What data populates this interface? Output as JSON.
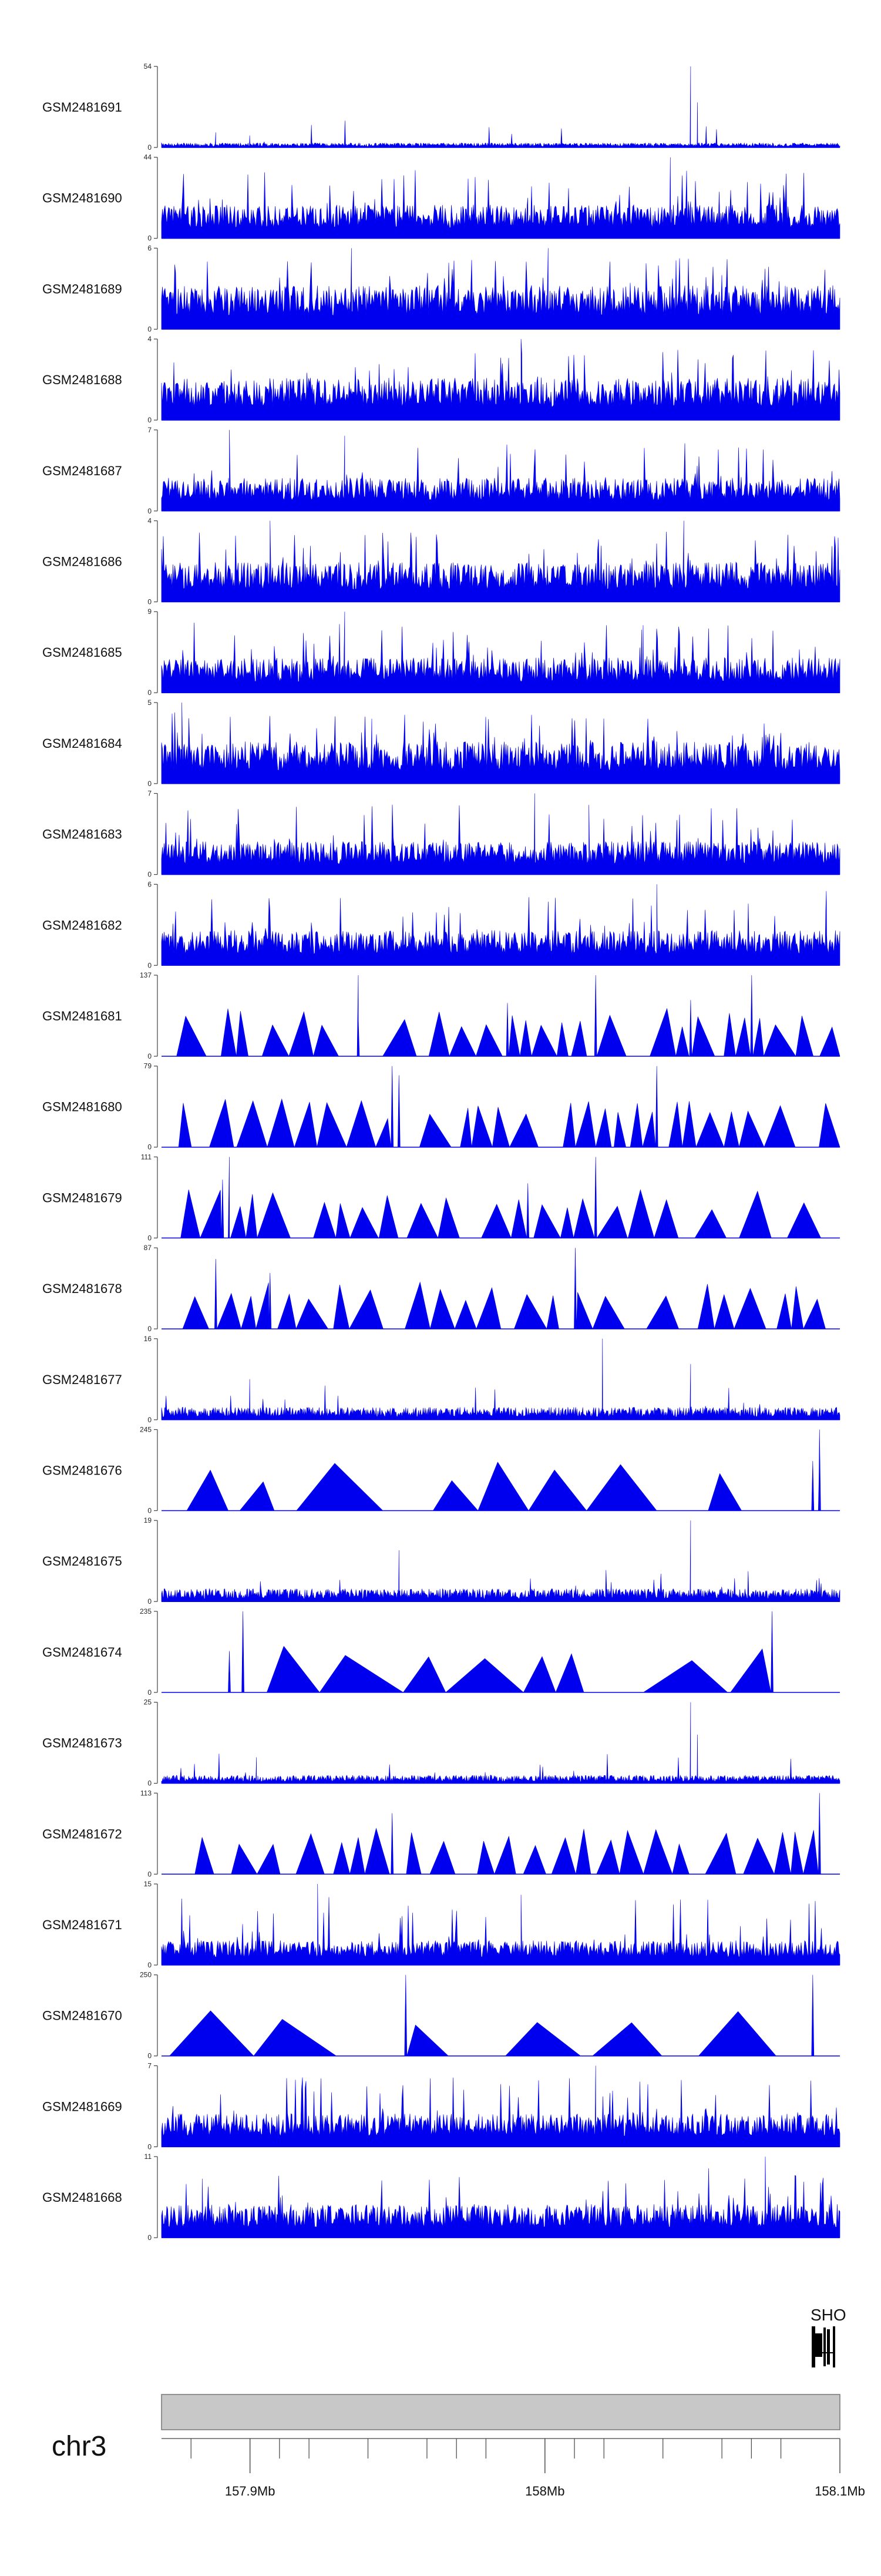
{
  "chart_data": {
    "type": "area",
    "title": "",
    "xlabel": "",
    "ylabel": "",
    "xlim": [
      157.87,
      158.1
    ],
    "tracks": [
      {
        "name": "GSM2481691",
        "ymax": "54",
        "mode": "sparse",
        "peak": 54,
        "base": 3,
        "spikes": [
          [
            0.78,
            54
          ],
          [
            0.79,
            30
          ],
          [
            0.08,
            10
          ],
          [
            0.13,
            8
          ]
        ]
      },
      {
        "name": "GSM2481690",
        "ymax": "44",
        "mode": "dense",
        "peak": 44,
        "base": 14,
        "spikes": [
          [
            0.75,
            44
          ],
          [
            0.78,
            20
          ],
          [
            0.54,
            22
          ]
        ]
      },
      {
        "name": "GSM2481689",
        "ymax": "6",
        "mode": "dense",
        "peak": 6,
        "base": 2.5,
        "spikes": [
          [
            0.28,
            6
          ],
          [
            0.57,
            6
          ]
        ]
      },
      {
        "name": "GSM2481688",
        "ymax": "4",
        "mode": "dense",
        "peak": 4,
        "base": 1.6,
        "spikes": [
          [
            0.53,
            4
          ]
        ]
      },
      {
        "name": "GSM2481687",
        "ymax": "7",
        "mode": "dense",
        "peak": 7,
        "base": 2.2,
        "spikes": [
          [
            0.1,
            7
          ],
          [
            0.27,
            6.5
          ]
        ]
      },
      {
        "name": "GSM2481686",
        "ymax": "4",
        "mode": "dense",
        "peak": 4,
        "base": 1.5,
        "spikes": [
          [
            0.16,
            4
          ],
          [
            0.77,
            4
          ]
        ]
      },
      {
        "name": "GSM2481685",
        "ymax": "9",
        "mode": "dense",
        "peak": 9,
        "base": 3,
        "spikes": [
          [
            0.27,
            9
          ],
          [
            0.71,
            7.5
          ]
        ]
      },
      {
        "name": "GSM2481684",
        "ymax": "5",
        "mode": "dense",
        "peak": 5,
        "base": 2,
        "spikes": [
          [
            0.03,
            5
          ],
          [
            0.31,
            4
          ]
        ]
      },
      {
        "name": "GSM2481683",
        "ymax": "7",
        "mode": "dense",
        "peak": 7,
        "base": 2.2,
        "spikes": [
          [
            0.55,
            7
          ],
          [
            0.63,
            6
          ]
        ]
      },
      {
        "name": "GSM2481682",
        "ymax": "6",
        "mode": "dense",
        "peak": 6,
        "base": 2,
        "spikes": [
          [
            0.73,
            6
          ],
          [
            0.98,
            5.5
          ]
        ]
      },
      {
        "name": "GSM2481681",
        "ymax": "137",
        "mode": "tri",
        "peak": 137,
        "base": 0,
        "spikes": [
          [
            0.29,
            137
          ],
          [
            0.64,
            137
          ],
          [
            0.87,
            137
          ],
          [
            0.51,
            90
          ],
          [
            0.78,
            95
          ]
        ]
      },
      {
        "name": "GSM2481680",
        "ymax": "79",
        "mode": "tri",
        "peak": 79,
        "base": 0,
        "spikes": [
          [
            0.34,
            79
          ],
          [
            0.73,
            79
          ],
          [
            0.35,
            70
          ]
        ]
      },
      {
        "name": "GSM2481679",
        "ymax": "111",
        "mode": "tri",
        "peak": 111,
        "base": 0,
        "spikes": [
          [
            0.1,
            111
          ],
          [
            0.64,
            111
          ],
          [
            0.09,
            80
          ],
          [
            0.54,
            75
          ]
        ]
      },
      {
        "name": "GSM2481678",
        "ymax": "87",
        "mode": "tri",
        "peak": 87,
        "base": 0,
        "spikes": [
          [
            0.61,
            87
          ],
          [
            0.16,
            60
          ],
          [
            0.08,
            75
          ]
        ]
      },
      {
        "name": "GSM2481677",
        "ymax": "16",
        "mode": "sparse",
        "peak": 16,
        "base": 2.5,
        "spikes": [
          [
            0.65,
            16
          ],
          [
            0.78,
            11
          ],
          [
            0.13,
            8
          ]
        ]
      },
      {
        "name": "GSM2481676",
        "ymax": "245",
        "mode": "tri",
        "peak": 245,
        "base": 0,
        "spikes": [
          [
            0.97,
            245
          ],
          [
            0.96,
            150
          ]
        ]
      },
      {
        "name": "GSM2481675",
        "ymax": "19",
        "mode": "sparse",
        "peak": 19,
        "base": 3,
        "spikes": [
          [
            0.78,
            19
          ],
          [
            0.35,
            12
          ]
        ]
      },
      {
        "name": "GSM2481674",
        "ymax": "235",
        "mode": "tri",
        "peak": 235,
        "base": 0,
        "spikes": [
          [
            0.12,
            235
          ],
          [
            0.1,
            120
          ],
          [
            0.9,
            235
          ]
        ]
      },
      {
        "name": "GSM2481673",
        "ymax": "25",
        "mode": "sparse",
        "peak": 25,
        "base": 2.5,
        "spikes": [
          [
            0.78,
            25
          ],
          [
            0.79,
            15
          ],
          [
            0.14,
            8
          ]
        ]
      },
      {
        "name": "GSM2481672",
        "ymax": "113",
        "mode": "tri",
        "peak": 113,
        "base": 0,
        "spikes": [
          [
            0.97,
            113
          ],
          [
            0.34,
            85
          ]
        ]
      },
      {
        "name": "GSM2481671",
        "ymax": "15",
        "mode": "dense",
        "peak": 15,
        "base": 3.5,
        "spikes": [
          [
            0.23,
            15
          ],
          [
            0.53,
            13
          ]
        ]
      },
      {
        "name": "GSM2481670",
        "ymax": "250",
        "mode": "tri",
        "peak": 250,
        "base": 0,
        "spikes": [
          [
            0.36,
            250
          ],
          [
            0.96,
            250
          ]
        ]
      },
      {
        "name": "GSM2481669",
        "ymax": "7",
        "mode": "dense",
        "peak": 7,
        "base": 2.2,
        "spikes": [
          [
            0.64,
            7
          ]
        ]
      },
      {
        "name": "GSM2481668",
        "ymax": "11",
        "mode": "dense",
        "peak": 11,
        "base": 3.5,
        "spikes": [
          [
            0.89,
            11
          ],
          [
            0.06,
            8
          ]
        ]
      }
    ],
    "gene": {
      "label": "SHO"
    },
    "chromosome": {
      "label": "chr3",
      "minor_ticks": [
        157.88,
        157.91,
        157.92,
        157.94,
        157.96,
        157.97,
        157.98,
        158.01,
        158.02,
        158.04,
        158.06,
        158.07,
        158.08
      ],
      "major_ticks": [
        {
          "value": 157.9,
          "label": "157.9Mb"
        },
        {
          "value": 158.0,
          "label": "158Mb"
        },
        {
          "value": 158.1,
          "label": "158.1Mb"
        }
      ]
    },
    "colors": {
      "signal": "#0000ee",
      "ideogram": "#c8c8c8",
      "axis": "#444444"
    }
  }
}
